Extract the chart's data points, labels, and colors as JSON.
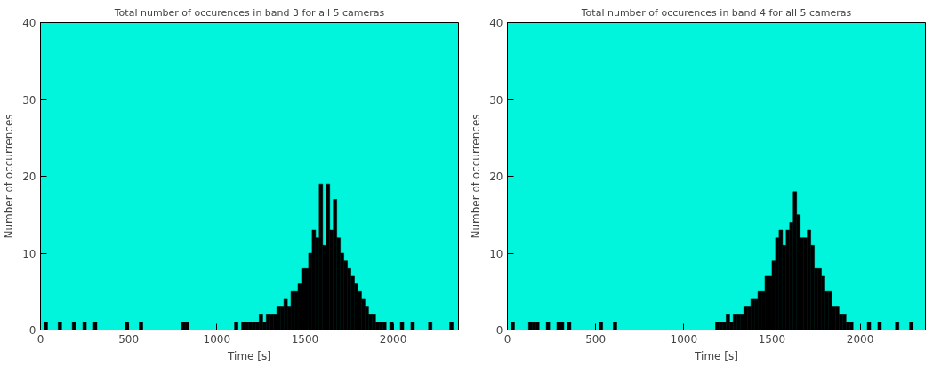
{
  "chart_data": [
    {
      "type": "histogram",
      "title": "Total number of occurences in band 3 for all 5 cameras",
      "xlabel": "Time [s]",
      "ylabel": "Number of occurrences",
      "color": "#000000",
      "bins": [
        0,
        20,
        40,
        60,
        80,
        100,
        120,
        140,
        160,
        180,
        200,
        220,
        240,
        260,
        280,
        300,
        320,
        340,
        360,
        380,
        400,
        420,
        440,
        460,
        480,
        500,
        520,
        540,
        560,
        580,
        600,
        620,
        640,
        660,
        680,
        700,
        720,
        740,
        760,
        780,
        800,
        820,
        840,
        860,
        880,
        900,
        920,
        940,
        960,
        980,
        1000,
        1020,
        1040,
        1060,
        1080,
        1100,
        1120,
        1140,
        1160,
        1180,
        1200,
        1220,
        1240,
        1260,
        1280,
        1300,
        1320,
        1340,
        1360,
        1380,
        1400,
        1420,
        1440,
        1460,
        1480,
        1500,
        1520,
        1540,
        1560,
        1580,
        1600,
        1620,
        1640,
        1660,
        1680,
        1700,
        1720,
        1740,
        1760,
        1780,
        1800,
        1820,
        1840,
        1860,
        1880,
        1900,
        1920,
        1940,
        1960,
        1980,
        2000,
        2020,
        2040,
        2060,
        2080,
        2100,
        2120,
        2140,
        2160,
        2180,
        2200,
        2220,
        2240,
        2260,
        2280,
        2300,
        2320,
        2340,
        2360
      ],
      "values": [
        0,
        1,
        0,
        0,
        0,
        1,
        0,
        0,
        0,
        1,
        0,
        0,
        1,
        0,
        0,
        1,
        0,
        0,
        0,
        0,
        0,
        0,
        0,
        0,
        1,
        0,
        0,
        0,
        1,
        0,
        0,
        0,
        0,
        0,
        0,
        0,
        0,
        0,
        0,
        0,
        1,
        1,
        0,
        0,
        0,
        0,
        0,
        0,
        0,
        0,
        0,
        0,
        0,
        0,
        0,
        1,
        0,
        1,
        1,
        1,
        1,
        1,
        2,
        1,
        2,
        2,
        2,
        3,
        3,
        4,
        3,
        5,
        5,
        6,
        8,
        8,
        10,
        13,
        12,
        19,
        11,
        19,
        13,
        17,
        12,
        10,
        9,
        8,
        7,
        6,
        5,
        4,
        3,
        2,
        2,
        1,
        1,
        1,
        0,
        1,
        0,
        0,
        1,
        0,
        0,
        1,
        0,
        0,
        0,
        0,
        1,
        0,
        0,
        0,
        0,
        0,
        1,
        0
      ],
      "xlim": [
        0,
        2370
      ],
      "xticks": [
        0,
        500,
        1000,
        1500,
        2000
      ],
      "ylim": [
        0,
        40
      ],
      "yticks": [
        0,
        10,
        20,
        30,
        40
      ],
      "grid": false
    },
    {
      "type": "histogram",
      "title": "Total number of occurences in band 4 for all 5 cameras",
      "xlabel": "Time [s]",
      "ylabel": "Number of occurrences",
      "color": "#000000",
      "bins": [
        0,
        20,
        40,
        60,
        80,
        100,
        120,
        140,
        160,
        180,
        200,
        220,
        240,
        260,
        280,
        300,
        320,
        340,
        360,
        380,
        400,
        420,
        440,
        460,
        480,
        500,
        520,
        540,
        560,
        580,
        600,
        620,
        640,
        660,
        680,
        700,
        720,
        740,
        760,
        780,
        800,
        820,
        840,
        860,
        880,
        900,
        920,
        940,
        960,
        980,
        1000,
        1020,
        1040,
        1060,
        1080,
        1100,
        1120,
        1140,
        1160,
        1180,
        1200,
        1220,
        1240,
        1260,
        1280,
        1300,
        1320,
        1340,
        1360,
        1380,
        1400,
        1420,
        1440,
        1460,
        1480,
        1500,
        1520,
        1540,
        1560,
        1580,
        1600,
        1620,
        1640,
        1660,
        1680,
        1700,
        1720,
        1740,
        1760,
        1780,
        1800,
        1820,
        1840,
        1860,
        1880,
        1900,
        1920,
        1940,
        1960,
        1980,
        2000,
        2020,
        2040,
        2060,
        2080,
        2100,
        2120,
        2140,
        2160,
        2180,
        2200,
        2220,
        2240,
        2260,
        2280,
        2300,
        2320,
        2340,
        2360
      ],
      "values": [
        0,
        1,
        0,
        0,
        0,
        0,
        1,
        1,
        1,
        0,
        0,
        1,
        0,
        0,
        1,
        1,
        0,
        1,
        0,
        0,
        0,
        0,
        0,
        0,
        0,
        0,
        1,
        0,
        0,
        0,
        1,
        0,
        0,
        0,
        0,
        0,
        0,
        0,
        0,
        0,
        0,
        0,
        0,
        0,
        0,
        0,
        0,
        0,
        0,
        0,
        0,
        0,
        0,
        0,
        0,
        0,
        0,
        0,
        0,
        1,
        1,
        1,
        2,
        1,
        2,
        2,
        2,
        3,
        3,
        4,
        4,
        5,
        5,
        7,
        7,
        9,
        12,
        13,
        11,
        13,
        14,
        18,
        15,
        12,
        12,
        13,
        11,
        8,
        8,
        7,
        5,
        5,
        3,
        3,
        2,
        2,
        1,
        1,
        0,
        0,
        0,
        0,
        1,
        0,
        0,
        1,
        0,
        0,
        0,
        0,
        1,
        0,
        0,
        0,
        1,
        0,
        0,
        0
      ],
      "xlim": [
        0,
        2370
      ],
      "xticks": [
        0,
        500,
        1000,
        1500,
        2000
      ],
      "ylim": [
        0,
        40
      ],
      "yticks": [
        0,
        10,
        20,
        30,
        40
      ],
      "grid": false
    }
  ]
}
